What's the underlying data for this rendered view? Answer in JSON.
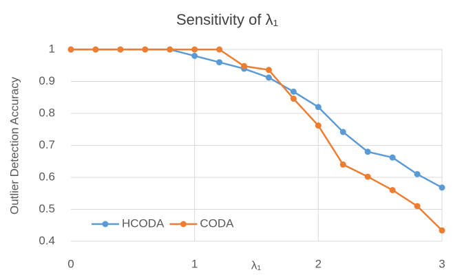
{
  "chart_data": {
    "type": "line",
    "title": "Sensitivity of λ₁",
    "xlabel": "λ₁",
    "ylabel": "Outlier Detection Accuracy",
    "x": [
      0,
      0.2,
      0.4,
      0.6,
      0.8,
      1,
      1.2,
      1.4,
      1.6,
      1.8,
      2,
      2.2,
      2.4,
      2.6,
      2.8,
      3
    ],
    "series": [
      {
        "name": "HCODA",
        "color": "#5b9bd5",
        "values": [
          1,
          1,
          1,
          1,
          1,
          0.98,
          0.96,
          0.94,
          0.912,
          0.868,
          0.82,
          0.742,
          0.68,
          0.662,
          0.61,
          0.568
        ]
      },
      {
        "name": "CODA",
        "color": "#ed7d31",
        "values": [
          1,
          1,
          1,
          1,
          1,
          1,
          1,
          0.948,
          0.936,
          0.846,
          0.762,
          0.64,
          0.602,
          0.56,
          0.51,
          0.434
        ]
      }
    ],
    "xlim": [
      0,
      3
    ],
    "xticks": [
      0,
      1,
      2,
      3
    ],
    "ylim": [
      0.4,
      1
    ],
    "yticks": [
      0.4,
      0.5,
      0.6,
      0.7,
      0.8,
      0.9,
      1
    ],
    "grid": true,
    "legend": "lower left"
  }
}
